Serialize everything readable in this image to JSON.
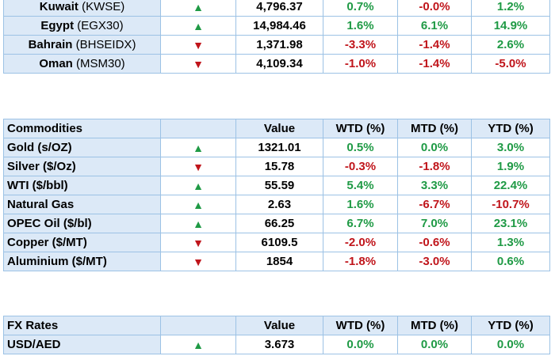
{
  "markets": {
    "rows": [
      {
        "name": "Kuwait",
        "code": "(KWSE)",
        "dir": "up",
        "value": "4,796.37",
        "wtd": "0.7%",
        "mtd": "-0.0%",
        "ytd": "1.2%"
      },
      {
        "name": "Egypt",
        "code": "(EGX30)",
        "dir": "up",
        "value": "14,984.46",
        "wtd": "1.6%",
        "mtd": "6.1%",
        "ytd": "14.9%"
      },
      {
        "name": "Bahrain",
        "code": "(BHSEIDX)",
        "dir": "down",
        "value": "1,371.98",
        "wtd": "-3.3%",
        "mtd": "-1.4%",
        "ytd": "2.6%"
      },
      {
        "name": "Oman",
        "code": "(MSM30)",
        "dir": "down",
        "value": "4,109.34",
        "wtd": "-1.0%",
        "mtd": "-1.4%",
        "ytd": "-5.0%"
      }
    ]
  },
  "commodities": {
    "headers": {
      "title": "Commodities",
      "value": "Value",
      "wtd": "WTD (%)",
      "mtd": "MTD (%)",
      "ytd": "YTD (%)"
    },
    "rows": [
      {
        "name": "Gold (s/OZ)",
        "dir": "up",
        "value": "1321.01",
        "wtd": "0.5%",
        "mtd": "0.0%",
        "ytd": "3.0%"
      },
      {
        "name": "Silver ($/Oz)",
        "dir": "down",
        "value": "15.78",
        "wtd": "-0.3%",
        "mtd": "-1.8%",
        "ytd": "1.9%"
      },
      {
        "name": "WTI ($/bbl)",
        "dir": "up",
        "value": "55.59",
        "wtd": "5.4%",
        "mtd": "3.3%",
        "ytd": "22.4%"
      },
      {
        "name": "Natural Gas",
        "dir": "up",
        "value": "2.63",
        "wtd": "1.6%",
        "mtd": "-6.7%",
        "ytd": "-10.7%"
      },
      {
        "name": "OPEC Oil ($/bl)",
        "dir": "up",
        "value": "66.25",
        "wtd": "6.7%",
        "mtd": "7.0%",
        "ytd": "23.1%"
      },
      {
        "name": "Copper ($/MT)",
        "dir": "down",
        "value": "6109.5",
        "wtd": "-2.0%",
        "mtd": "-0.6%",
        "ytd": "1.3%"
      },
      {
        "name": "Aluminium ($/MT)",
        "dir": "down",
        "value": "1854",
        "wtd": "-1.8%",
        "mtd": "-3.0%",
        "ytd": "0.6%"
      }
    ]
  },
  "fx": {
    "headers": {
      "title": "FX Rates",
      "value": "Value",
      "wtd": "WTD (%)",
      "mtd": "MTD (%)",
      "ytd": "YTD (%)"
    },
    "rows": [
      {
        "name": "USD/AED",
        "dir": "up",
        "value": "3.673",
        "wtd": "0.0%",
        "mtd": "0.0%",
        "ytd": "0.0%"
      }
    ]
  },
  "colors": {
    "up": "#1f9a45",
    "down": "#c0151b",
    "header_bg": "#dce9f7",
    "border": "#9cc2e5"
  },
  "icons": {
    "up": "triangle-up-icon",
    "down": "triangle-down-icon"
  }
}
